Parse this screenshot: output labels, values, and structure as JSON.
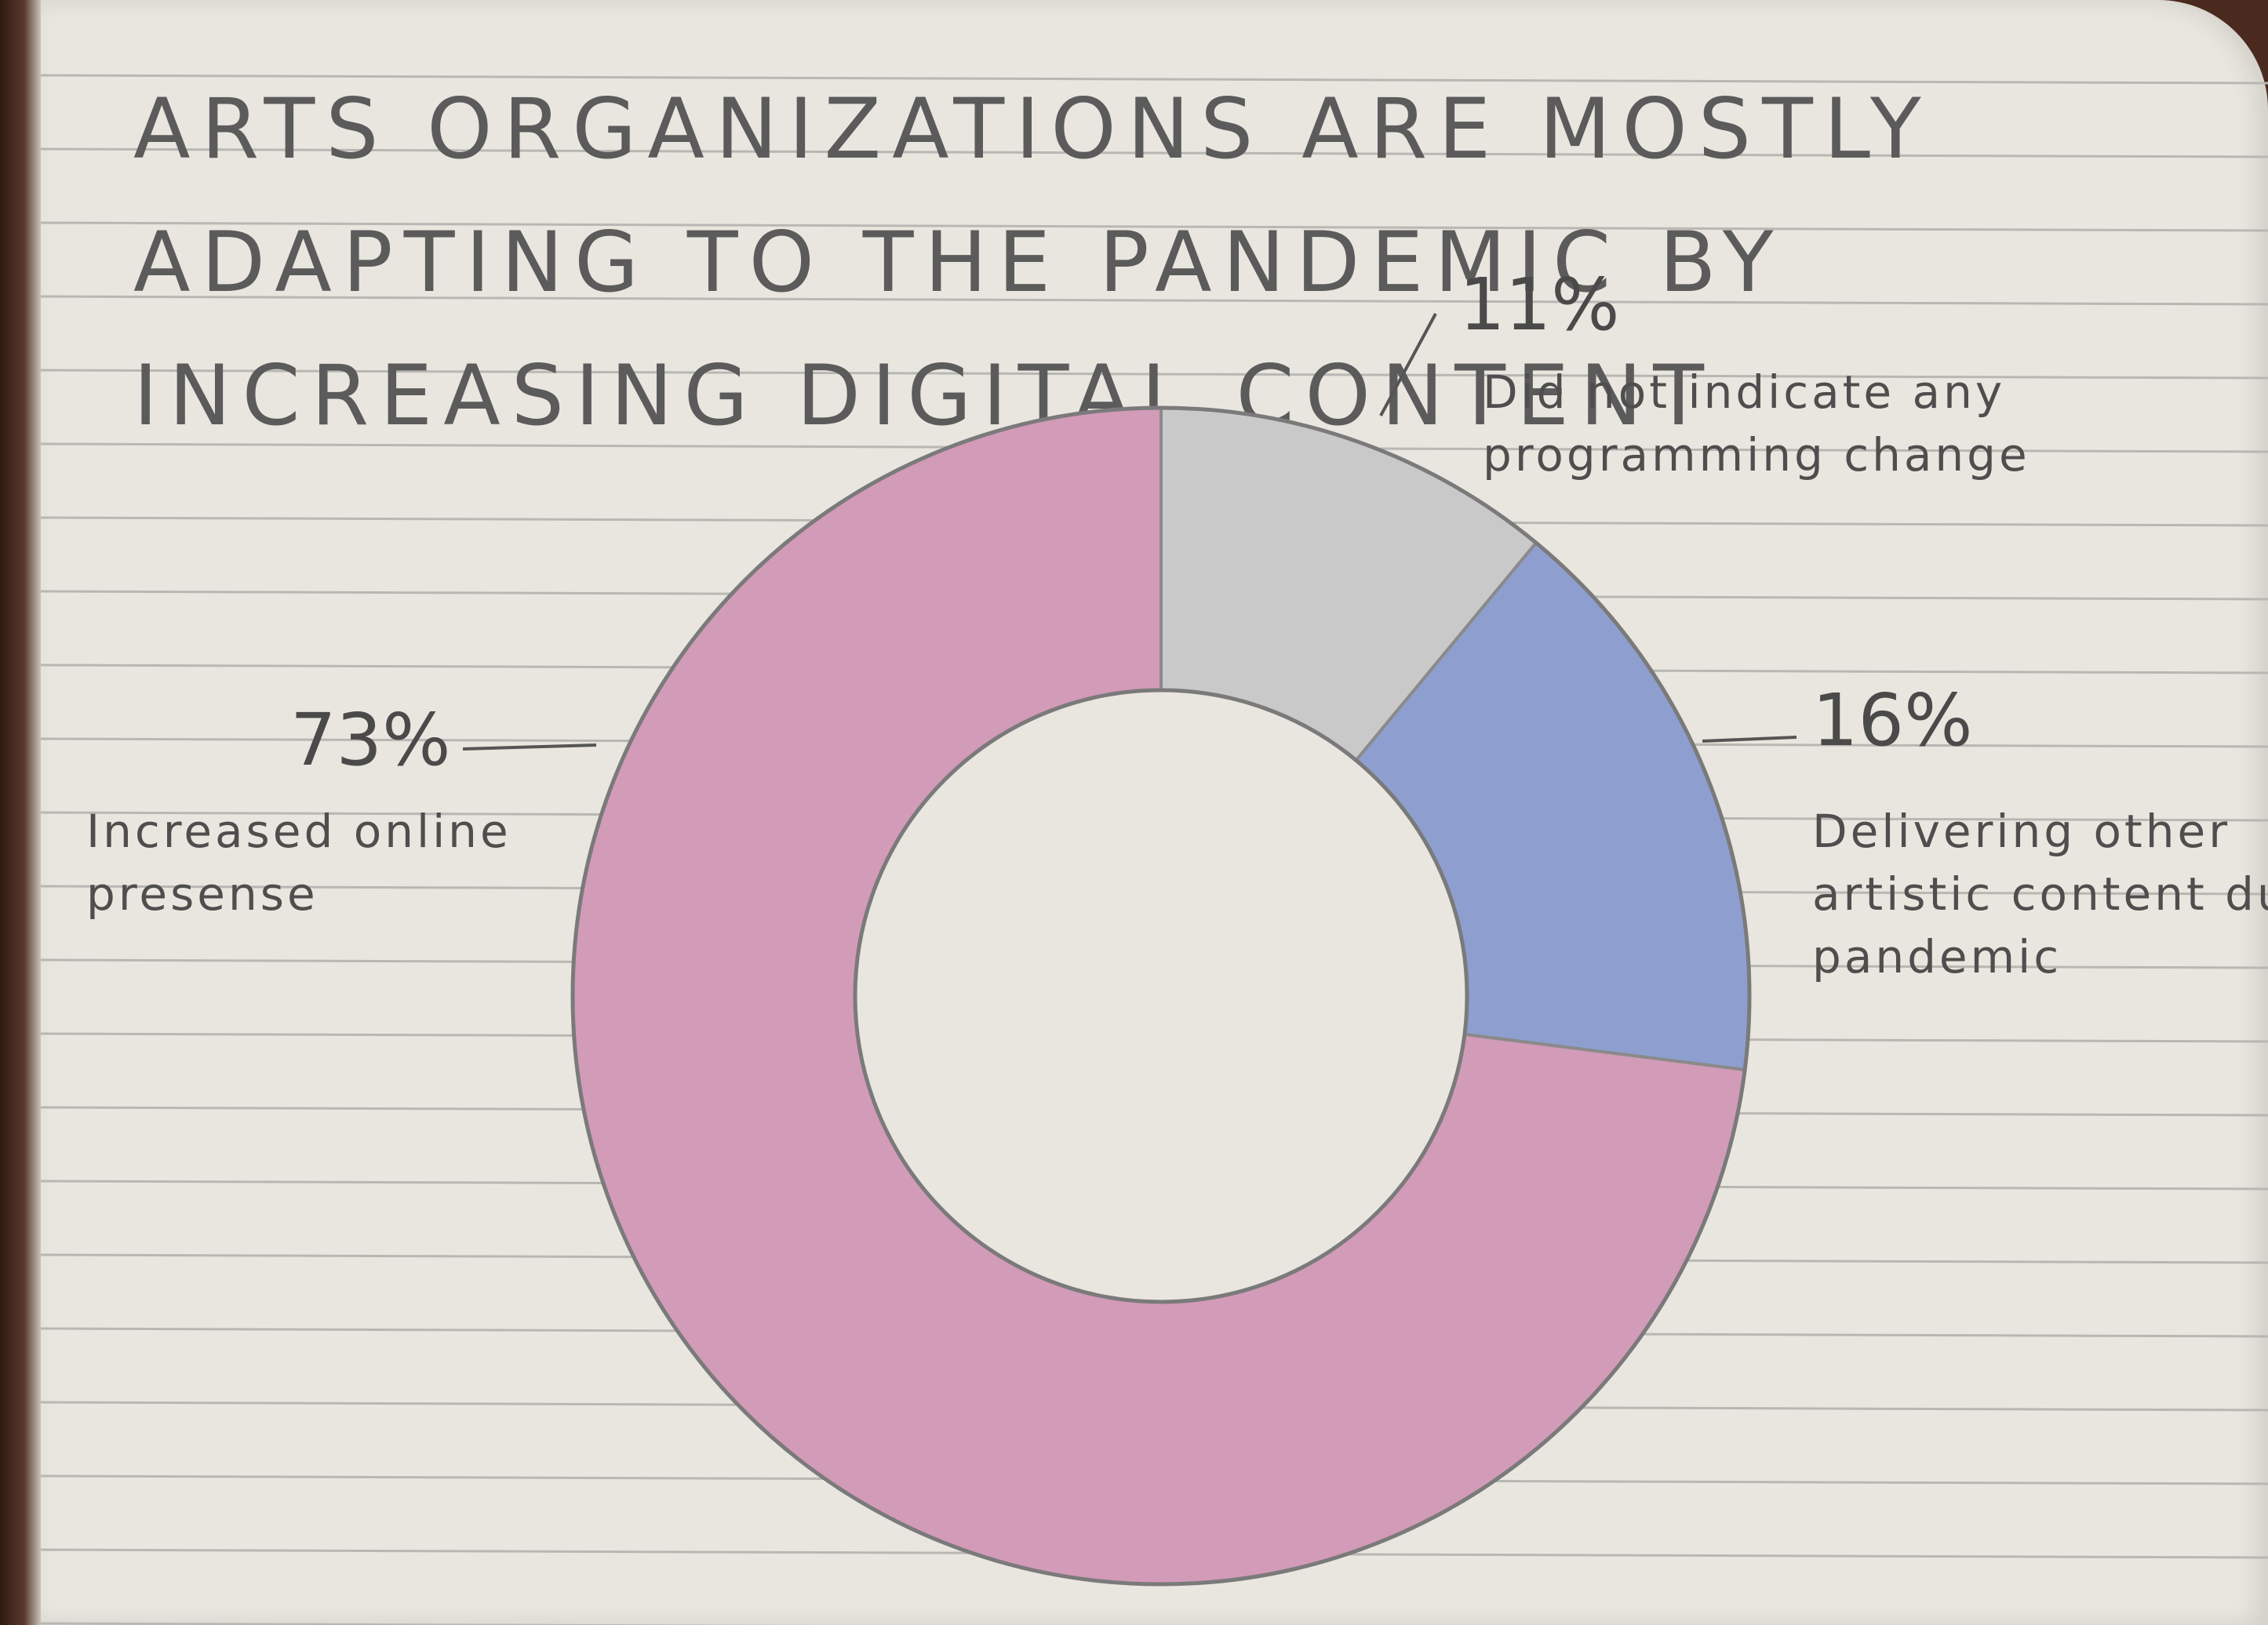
{
  "chart_data": {
    "type": "pie",
    "title": "ARTS ORGANIZATIONS ARE MOSTLY ADAPTING TO THE PANDEMIC BY INCREASING DIGITAL CONTENT",
    "donut": true,
    "slices": [
      {
        "label": "Did not indicate any programming change",
        "value_label": "11%",
        "value": 11,
        "color": "#c9c9c9"
      },
      {
        "label": "Delivering other artistic content during pandemic",
        "value_label": "16%",
        "value": 16,
        "color": "#8e9fcf"
      },
      {
        "label": "Increased online presense",
        "value_label": "73%",
        "value": 73,
        "color": "#d29bb8"
      }
    ]
  }
}
